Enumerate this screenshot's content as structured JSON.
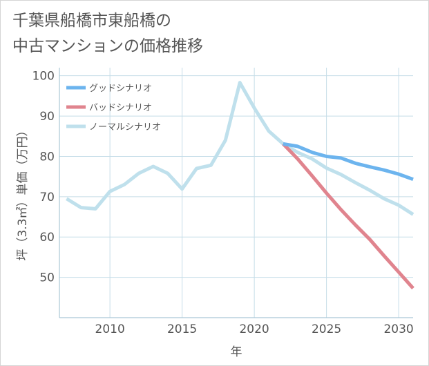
{
  "title_lines": [
    "千葉県船橋市東船橋の",
    "中古マンションの価格推移"
  ],
  "chart_data": {
    "type": "line",
    "title": "千葉県船橋市東船橋の中古マンションの価格推移",
    "xlabel": "年",
    "ylabel": "坪（3.3㎡）単価（万円）",
    "xlim": [
      2006.5,
      2031
    ],
    "ylim": [
      40,
      102
    ],
    "x_ticks": [
      2010,
      2015,
      2020,
      2025,
      2030
    ],
    "y_ticks": [
      50,
      60,
      70,
      80,
      90,
      100
    ],
    "grid": true,
    "legend_position": "top-left",
    "series": [
      {
        "name": "ノーマルシナリオ",
        "color": "#bfe0ec",
        "x": [
          2007,
          2008,
          2009,
          2010,
          2011,
          2012,
          2013,
          2014,
          2015,
          2016,
          2017,
          2018,
          2019,
          2020,
          2021,
          2022,
          2023,
          2024,
          2025,
          2026,
          2027,
          2028,
          2029,
          2030,
          2031
        ],
        "values": [
          69.5,
          67.3,
          67.0,
          71.3,
          73.0,
          75.8,
          77.5,
          75.8,
          71.9,
          77.0,
          77.8,
          84.0,
          98.3,
          92.0,
          86.3,
          83.1,
          81.0,
          79.4,
          77.1,
          75.5,
          73.5,
          71.6,
          69.5,
          67.9,
          65.6
        ]
      },
      {
        "name": "バッドシナリオ",
        "color": "#e0848e",
        "x": [
          2022,
          2023,
          2024,
          2025,
          2026,
          2027,
          2028,
          2029,
          2030,
          2031
        ],
        "values": [
          83.1,
          79.4,
          75.2,
          70.9,
          66.8,
          63.0,
          59.4,
          55.3,
          51.3,
          47.3
        ]
      },
      {
        "name": "グッドシナリオ",
        "color": "#6cb4ee",
        "x": [
          2022,
          2023,
          2024,
          2025,
          2026,
          2027,
          2028,
          2029,
          2030,
          2031
        ],
        "values": [
          83.1,
          82.5,
          81.0,
          80.0,
          79.6,
          78.3,
          77.4,
          76.6,
          75.6,
          74.3
        ]
      }
    ],
    "legend": [
      {
        "name": "グッドシナリオ",
        "color": "#6cb4ee"
      },
      {
        "name": "バッドシナリオ",
        "color": "#e0848e"
      },
      {
        "name": "ノーマルシナリオ",
        "color": "#bfe0ec"
      }
    ],
    "colors": {
      "grid": "#c5dde8",
      "axis": "#aac8d6",
      "text": "#555555"
    }
  }
}
